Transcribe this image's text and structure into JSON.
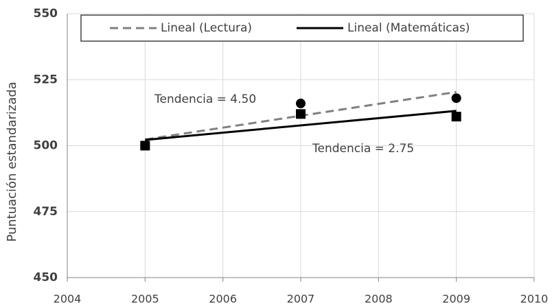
{
  "chart_data": {
    "type": "scatter",
    "ylabel": "Puntuación estandarizada",
    "xlim": [
      2004,
      2010
    ],
    "xticks": [
      2004,
      2005,
      2006,
      2007,
      2008,
      2009,
      2010
    ],
    "ylim": [
      450,
      550
    ],
    "yticks": [
      450,
      475,
      500,
      525,
      550
    ],
    "grid": true,
    "legend": "top",
    "series": [
      {
        "name": "Lineal (Lectura)",
        "color": "#808080",
        "line": "dashed",
        "x": [
          2005,
          2009
        ],
        "values": [
          502.33,
          520.33
        ]
      },
      {
        "name": "Lineal (Matemáticas)",
        "color": "#000000",
        "line": "solid",
        "x": [
          2005,
          2009
        ],
        "values": [
          502.17,
          513.17
        ]
      },
      {
        "marker": "circle",
        "color": "#000000",
        "x": [
          2005,
          2007,
          2009
        ],
        "values": [
          500,
          516,
          518
        ]
      },
      {
        "marker": "square",
        "color": "#000000",
        "x": [
          2005,
          2007,
          2009
        ],
        "values": [
          500,
          512,
          511
        ]
      }
    ],
    "annotations": [
      "Tendencia = 4.50",
      "Tendencia = 2.75"
    ]
  }
}
